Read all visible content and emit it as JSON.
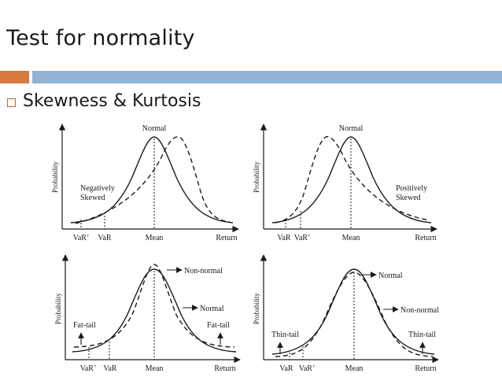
{
  "title": "Test for normality",
  "bullet": "Skewness & Kurtosis",
  "colors": {
    "accent_orange": "#d8793e",
    "accent_blue": "#92b2d4",
    "bullet_border": "#b8623c",
    "ink": "#1a1a1a"
  },
  "panels": [
    {
      "id": "negatively-skewed",
      "ylabel": "Probability",
      "top_label": "Normal",
      "annotation": [
        "Negatively",
        "Skewed"
      ],
      "x_labels": [
        "VaR’",
        "VaR",
        "Mean",
        "Return"
      ]
    },
    {
      "id": "positively-skewed",
      "ylabel": "Probability",
      "top_label": "Normal",
      "annotation": [
        "Positively",
        "Skewed"
      ],
      "x_labels": [
        "VaR",
        "VaR’",
        "Mean",
        "Return"
      ]
    },
    {
      "id": "fat-tail",
      "ylabel": "Probability",
      "arrow_labels": [
        "Non-normal",
        "Normal"
      ],
      "tail_label": "Fat-tail",
      "x_labels": [
        "VaR’",
        "VaR",
        "Mean",
        "Return"
      ]
    },
    {
      "id": "thin-tail",
      "ylabel": "Probability",
      "arrow_labels": [
        "Normal",
        "Non-normal"
      ],
      "tail_label": "Thin-tail",
      "x_labels": [
        "VaR",
        "VaR’",
        "Mean",
        "Return"
      ]
    }
  ]
}
